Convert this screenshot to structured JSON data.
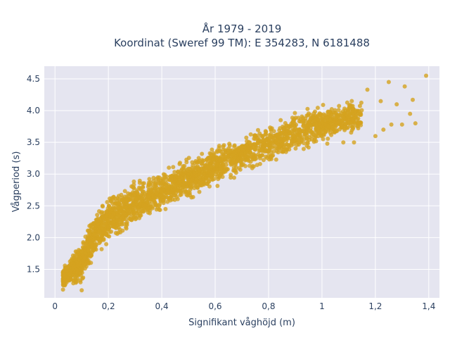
{
  "chart_data": {
    "type": "scatter",
    "title_line1": "År 1979 - 2019",
    "title_line2": "Koordinat (Sweref 99 TM): E 354283, N 6181488",
    "xlabel": "Signifikant våghöjd (m)",
    "ylabel": "Vågperiod (s)",
    "xlim": [
      -0.04,
      1.44
    ],
    "ylim": [
      1.05,
      4.7
    ],
    "x_ticks": [
      0,
      0.2,
      0.4,
      0.6,
      0.8,
      1,
      1.2,
      1.4
    ],
    "x_tick_labels": [
      "0",
      "0,2",
      "0,4",
      "0,6",
      "0,8",
      "1",
      "1,2",
      "1,4"
    ],
    "y_ticks": [
      1.5,
      2.0,
      2.5,
      3.0,
      3.5,
      4.0,
      4.5
    ],
    "y_tick_labels": [
      "1.5",
      "2.0",
      "2.5",
      "3.0",
      "3.5",
      "4.0",
      "4.5"
    ],
    "grid": true,
    "marker_color": "#d4a21f",
    "background_color": "#e5e5f0",
    "trend": {
      "note": "dense point cloud approximated by T = a + b*H^c",
      "lower": [
        [
          0.03,
          1.18
        ],
        [
          0.1,
          1.22
        ],
        [
          0.15,
          1.6
        ],
        [
          0.2,
          1.85
        ],
        [
          0.3,
          2.1
        ],
        [
          0.4,
          2.35
        ],
        [
          0.5,
          2.55
        ],
        [
          0.6,
          2.75
        ],
        [
          0.7,
          2.95
        ],
        [
          0.8,
          3.1
        ],
        [
          0.9,
          3.3
        ],
        [
          1.0,
          3.45
        ],
        [
          1.1,
          3.55
        ],
        [
          1.2,
          3.65
        ]
      ],
      "upper": [
        [
          0.03,
          1.55
        ],
        [
          0.1,
          2.0
        ],
        [
          0.15,
          2.5
        ],
        [
          0.2,
          2.7
        ],
        [
          0.3,
          2.95
        ],
        [
          0.4,
          3.1
        ],
        [
          0.5,
          3.3
        ],
        [
          0.6,
          3.5
        ],
        [
          0.7,
          3.65
        ],
        [
          0.8,
          3.85
        ],
        [
          0.9,
          4.05
        ],
        [
          1.0,
          4.15
        ],
        [
          1.1,
          4.2
        ],
        [
          1.2,
          4.3
        ]
      ]
    },
    "outliers": [
      {
        "x": 1.39,
        "y": 4.55
      },
      {
        "x": 1.31,
        "y": 4.38
      },
      {
        "x": 1.25,
        "y": 4.45
      },
      {
        "x": 1.17,
        "y": 4.33
      },
      {
        "x": 1.22,
        "y": 4.15
      },
      {
        "x": 1.28,
        "y": 4.1
      },
      {
        "x": 1.34,
        "y": 4.17
      },
      {
        "x": 1.35,
        "y": 3.8
      },
      {
        "x": 1.33,
        "y": 3.95
      },
      {
        "x": 1.3,
        "y": 3.78
      },
      {
        "x": 1.26,
        "y": 3.78
      },
      {
        "x": 1.23,
        "y": 3.7
      },
      {
        "x": 1.2,
        "y": 3.6
      },
      {
        "x": 1.12,
        "y": 3.5
      },
      {
        "x": 1.08,
        "y": 3.5
      },
      {
        "x": 1.02,
        "y": 3.48
      },
      {
        "x": 0.95,
        "y": 3.42
      },
      {
        "x": 0.1,
        "y": 1.17
      },
      {
        "x": 0.03,
        "y": 1.18
      },
      {
        "x": 0.06,
        "y": 1.45
      }
    ]
  }
}
